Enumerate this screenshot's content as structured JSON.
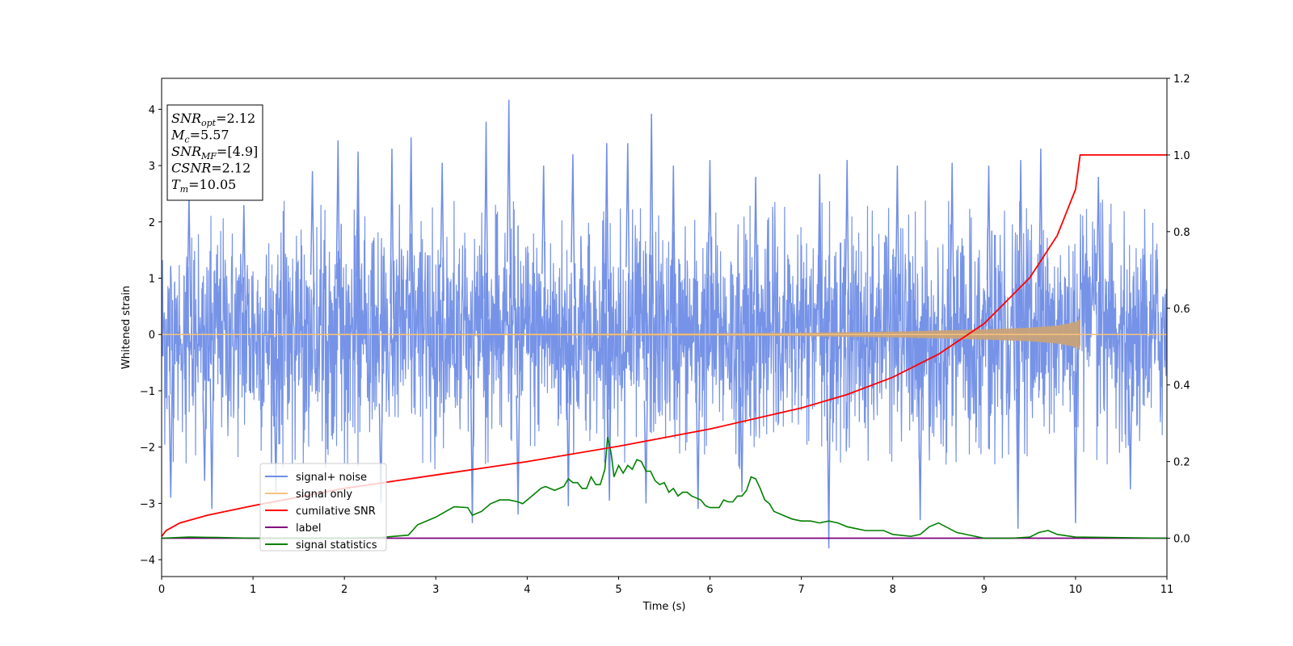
{
  "chart_data": {
    "type": "line",
    "xlabel": "Time (s)",
    "ylabel": "Whitened strain",
    "xlim": [
      0,
      11
    ],
    "ylim": [
      -4.3,
      4.55
    ],
    "ylim_right": [
      -0.1,
      1.2
    ],
    "xticks": [
      0,
      1,
      2,
      3,
      4,
      5,
      6,
      7,
      8,
      9,
      10,
      11
    ],
    "yticks": [
      -4,
      -3,
      -2,
      -1,
      0,
      1,
      2,
      3,
      4
    ],
    "yticks_right": [
      0.0,
      0.2,
      0.4,
      0.6,
      0.8,
      1.0,
      1.2
    ],
    "grid": false,
    "legend_position": "lower-left",
    "colors": {
      "signal_noise": "#6f8de6",
      "signal_only": "#f7c37a",
      "signal_only_fill": "#c8a27a",
      "cumulative_snr": "#ff0000",
      "label": "#800080",
      "signal_statistics": "#008000"
    },
    "series": [
      {
        "name": "signal+ noise",
        "axis": "left",
        "description_values": {
          "typical_min": -2.3,
          "typical_max": 2.3
        },
        "peak_spikes": [
          {
            "x": 0.3,
            "y": 2.5
          },
          {
            "x": 0.47,
            "y": -2.6
          },
          {
            "x": 0.9,
            "y": 2.3
          },
          {
            "x": 1.65,
            "y": 2.9
          },
          {
            "x": 1.93,
            "y": 3.45
          },
          {
            "x": 2.15,
            "y": 3.25
          },
          {
            "x": 2.52,
            "y": 3.3
          },
          {
            "x": 2.73,
            "y": 3.5
          },
          {
            "x": 3.07,
            "y": 3.05
          },
          {
            "x": 3.55,
            "y": 3.78
          },
          {
            "x": 3.8,
            "y": 4.17
          },
          {
            "x": 4.18,
            "y": 3.0
          },
          {
            "x": 4.5,
            "y": 3.2
          },
          {
            "x": 4.87,
            "y": 3.4
          },
          {
            "x": 5.1,
            "y": 3.4
          },
          {
            "x": 5.36,
            "y": 3.92
          },
          {
            "x": 5.6,
            "y": 3.0
          },
          {
            "x": 6.0,
            "y": 3.1
          },
          {
            "x": 6.5,
            "y": 2.8
          },
          {
            "x": 7.2,
            "y": 2.85
          },
          {
            "x": 7.5,
            "y": 3.1
          },
          {
            "x": 8.05,
            "y": 3.0
          },
          {
            "x": 8.65,
            "y": 3.05
          },
          {
            "x": 9.05,
            "y": 3.0
          },
          {
            "x": 9.4,
            "y": 3.1
          },
          {
            "x": 9.62,
            "y": 3.3
          },
          {
            "x": 10.25,
            "y": 2.8
          },
          {
            "x": 0.1,
            "y": -2.9
          },
          {
            "x": 0.55,
            "y": -3.1
          },
          {
            "x": 1.25,
            "y": -2.8
          },
          {
            "x": 2.4,
            "y": -3.0
          },
          {
            "x": 3.4,
            "y": -3.35
          },
          {
            "x": 3.9,
            "y": -3.2
          },
          {
            "x": 4.45,
            "y": -3.05
          },
          {
            "x": 4.9,
            "y": -2.95
          },
          {
            "x": 5.3,
            "y": -3.0
          },
          {
            "x": 5.87,
            "y": -3.1
          },
          {
            "x": 6.35,
            "y": -2.8
          },
          {
            "x": 7.3,
            "y": -3.8
          },
          {
            "x": 8.3,
            "y": -3.3
          },
          {
            "x": 9.37,
            "y": -3.45
          },
          {
            "x": 10.0,
            "y": -3.35
          },
          {
            "x": 10.6,
            "y": -2.75
          }
        ]
      },
      {
        "name": "signal only",
        "axis": "left",
        "envelope": [
          [
            0,
            0.01
          ],
          [
            2,
            0.012
          ],
          [
            4,
            0.015
          ],
          [
            6,
            0.02
          ],
          [
            7,
            0.03
          ],
          [
            8,
            0.05
          ],
          [
            8.5,
            0.07
          ],
          [
            9,
            0.09
          ],
          [
            9.5,
            0.12
          ],
          [
            9.8,
            0.16
          ],
          [
            10,
            0.22
          ],
          [
            10.05,
            0.28
          ],
          [
            10.06,
            0.0
          ],
          [
            11,
            0.0
          ]
        ]
      },
      {
        "name": "cumilative SNR",
        "axis": "right",
        "x": [
          0,
          0.05,
          0.2,
          0.5,
          1,
          2,
          3,
          4,
          5,
          6,
          7,
          7.5,
          8,
          8.5,
          9,
          9.5,
          9.8,
          10,
          10.05,
          10.06,
          11
        ],
        "y": [
          0.005,
          0.02,
          0.04,
          0.06,
          0.085,
          0.13,
          0.165,
          0.2,
          0.24,
          0.285,
          0.34,
          0.375,
          0.42,
          0.48,
          0.56,
          0.68,
          0.79,
          0.91,
          1.0,
          1.0,
          1.0
        ]
      },
      {
        "name": "label",
        "axis": "right",
        "x": [
          0,
          11
        ],
        "y": [
          0.0,
          0.0
        ]
      },
      {
        "name": "signal statistics",
        "axis": "right",
        "x": [
          0,
          0.3,
          0.6,
          1.0,
          1.5,
          2.0,
          2.4,
          2.7,
          2.8,
          3.0,
          3.2,
          3.35,
          3.4,
          3.5,
          3.6,
          3.7,
          3.8,
          3.9,
          3.95,
          4.0,
          4.1,
          4.15,
          4.2,
          4.3,
          4.4,
          4.45,
          4.5,
          4.55,
          4.6,
          4.65,
          4.7,
          4.75,
          4.8,
          4.85,
          4.88,
          4.92,
          4.95,
          5.0,
          5.05,
          5.1,
          5.15,
          5.2,
          5.25,
          5.3,
          5.35,
          5.4,
          5.45,
          5.5,
          5.55,
          5.6,
          5.65,
          5.7,
          5.75,
          5.8,
          5.85,
          5.9,
          5.95,
          6.0,
          6.1,
          6.15,
          6.2,
          6.25,
          6.3,
          6.35,
          6.4,
          6.45,
          6.5,
          6.55,
          6.6,
          6.65,
          6.7,
          6.8,
          6.9,
          7.0,
          7.1,
          7.2,
          7.3,
          7.4,
          7.5,
          7.6,
          7.7,
          7.8,
          7.9,
          8.0,
          8.2,
          8.3,
          8.4,
          8.5,
          8.7,
          9.0,
          9.3,
          9.5,
          9.6,
          9.7,
          9.8,
          10.0,
          11.0
        ],
        "y": [
          0.0,
          0.003,
          0.002,
          0.0,
          0.0,
          0.0,
          0.002,
          0.008,
          0.035,
          0.055,
          0.082,
          0.08,
          0.06,
          0.07,
          0.09,
          0.1,
          0.1,
          0.095,
          0.09,
          0.1,
          0.12,
          0.13,
          0.135,
          0.125,
          0.135,
          0.155,
          0.145,
          0.145,
          0.13,
          0.13,
          0.16,
          0.14,
          0.14,
          0.18,
          0.265,
          0.22,
          0.16,
          0.19,
          0.17,
          0.19,
          0.18,
          0.205,
          0.2,
          0.175,
          0.175,
          0.15,
          0.14,
          0.145,
          0.12,
          0.13,
          0.11,
          0.12,
          0.12,
          0.11,
          0.105,
          0.1,
          0.085,
          0.08,
          0.08,
          0.1,
          0.095,
          0.095,
          0.11,
          0.11,
          0.125,
          0.16,
          0.155,
          0.13,
          0.1,
          0.09,
          0.07,
          0.06,
          0.05,
          0.045,
          0.045,
          0.04,
          0.045,
          0.04,
          0.03,
          0.025,
          0.02,
          0.02,
          0.02,
          0.01,
          0.005,
          0.01,
          0.03,
          0.04,
          0.015,
          0.0,
          0.0,
          0.003,
          0.015,
          0.02,
          0.01,
          0.003,
          0.0
        ]
      }
    ],
    "legend": [
      {
        "label": "signal+ noise",
        "color": "#6f8de6"
      },
      {
        "label": "signal only",
        "color": "#f7c37a"
      },
      {
        "label": "cumilative SNR",
        "color": "#ff0000"
      },
      {
        "label": "label",
        "color": "#800080"
      },
      {
        "label": "signal statistics",
        "color": "#008000"
      }
    ],
    "annotation": [
      {
        "sym": "SNR",
        "sub": "opt",
        "val": "=2.12"
      },
      {
        "sym": "M",
        "sub": "c",
        "val": "=5.57"
      },
      {
        "sym": "SNR",
        "sub": "MF",
        "val": "=[4.9]"
      },
      {
        "sym": "CSNR",
        "sub": "",
        "val": "=2.12"
      },
      {
        "sym": "T",
        "sub": "m",
        "val": "=10.05"
      }
    ]
  }
}
